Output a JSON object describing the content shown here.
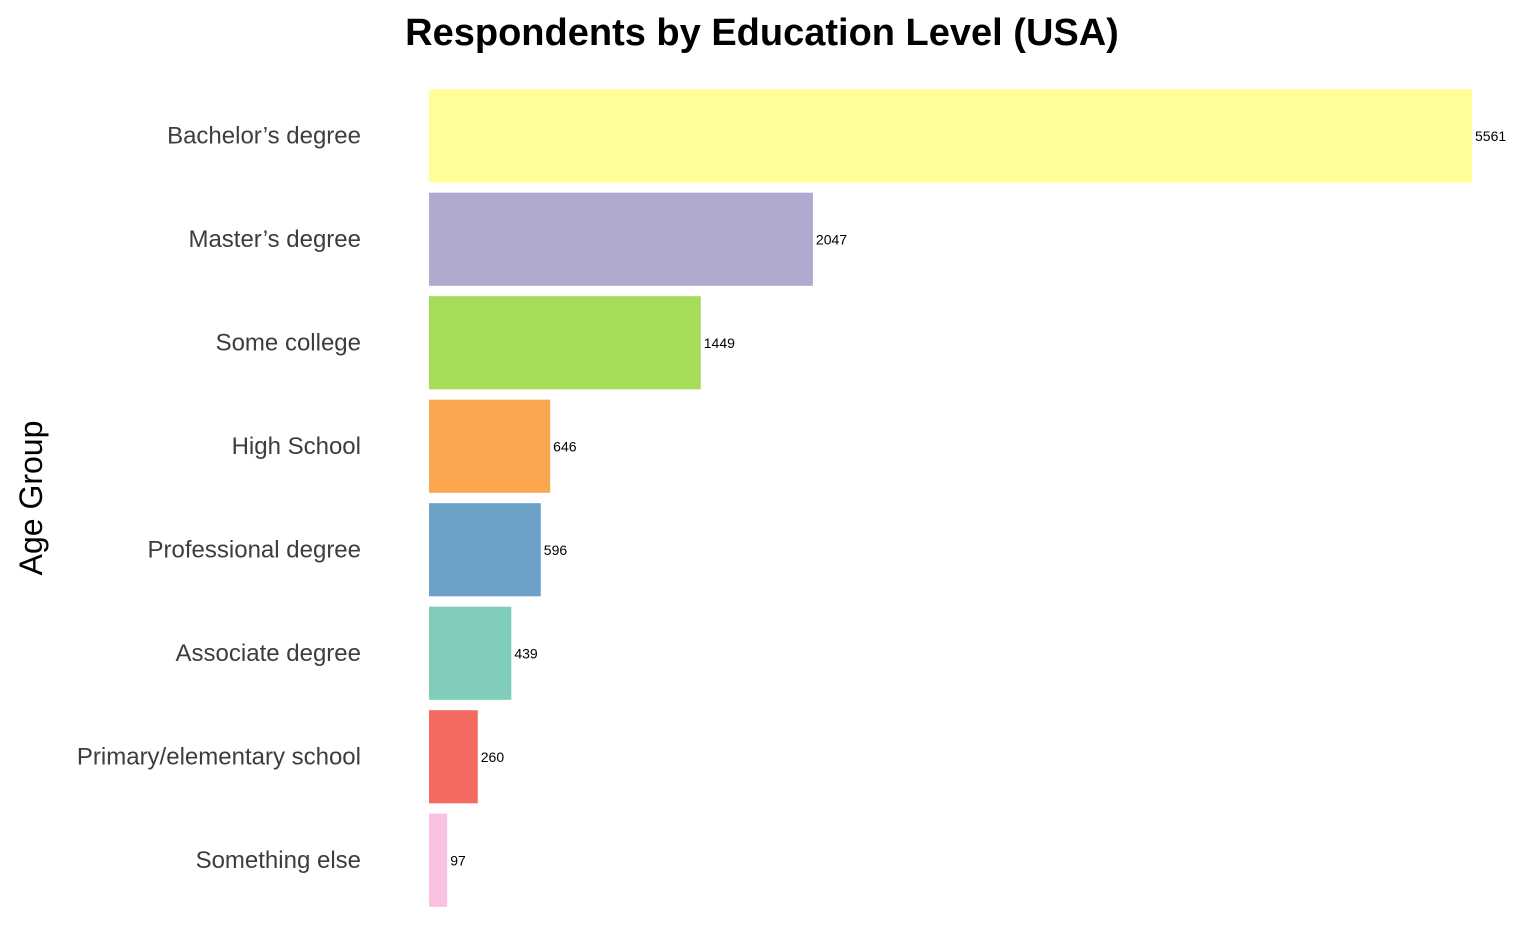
{
  "chart_data": {
    "type": "bar",
    "orientation": "horizontal",
    "title": "Respondents by Education Level (USA)",
    "xlabel": "",
    "ylabel": "Age Group",
    "grid": false,
    "legend": "none",
    "xlim": [
      0,
      5561
    ],
    "categories": [
      "Bachelor’s degree",
      "Master’s degree",
      "Some college",
      "High School",
      "Professional degree",
      "Associate degree",
      "Primary/elementary school",
      "Something else"
    ],
    "values": [
      5561,
      2047,
      1449,
      646,
      596,
      439,
      260,
      97
    ],
    "colors": [
      "#ffff99",
      "#b0aad0",
      "#a6dc58",
      "#fba750",
      "#6ea1c8",
      "#80cdbb",
      "#f46a60",
      "#f9c1e0"
    ]
  }
}
